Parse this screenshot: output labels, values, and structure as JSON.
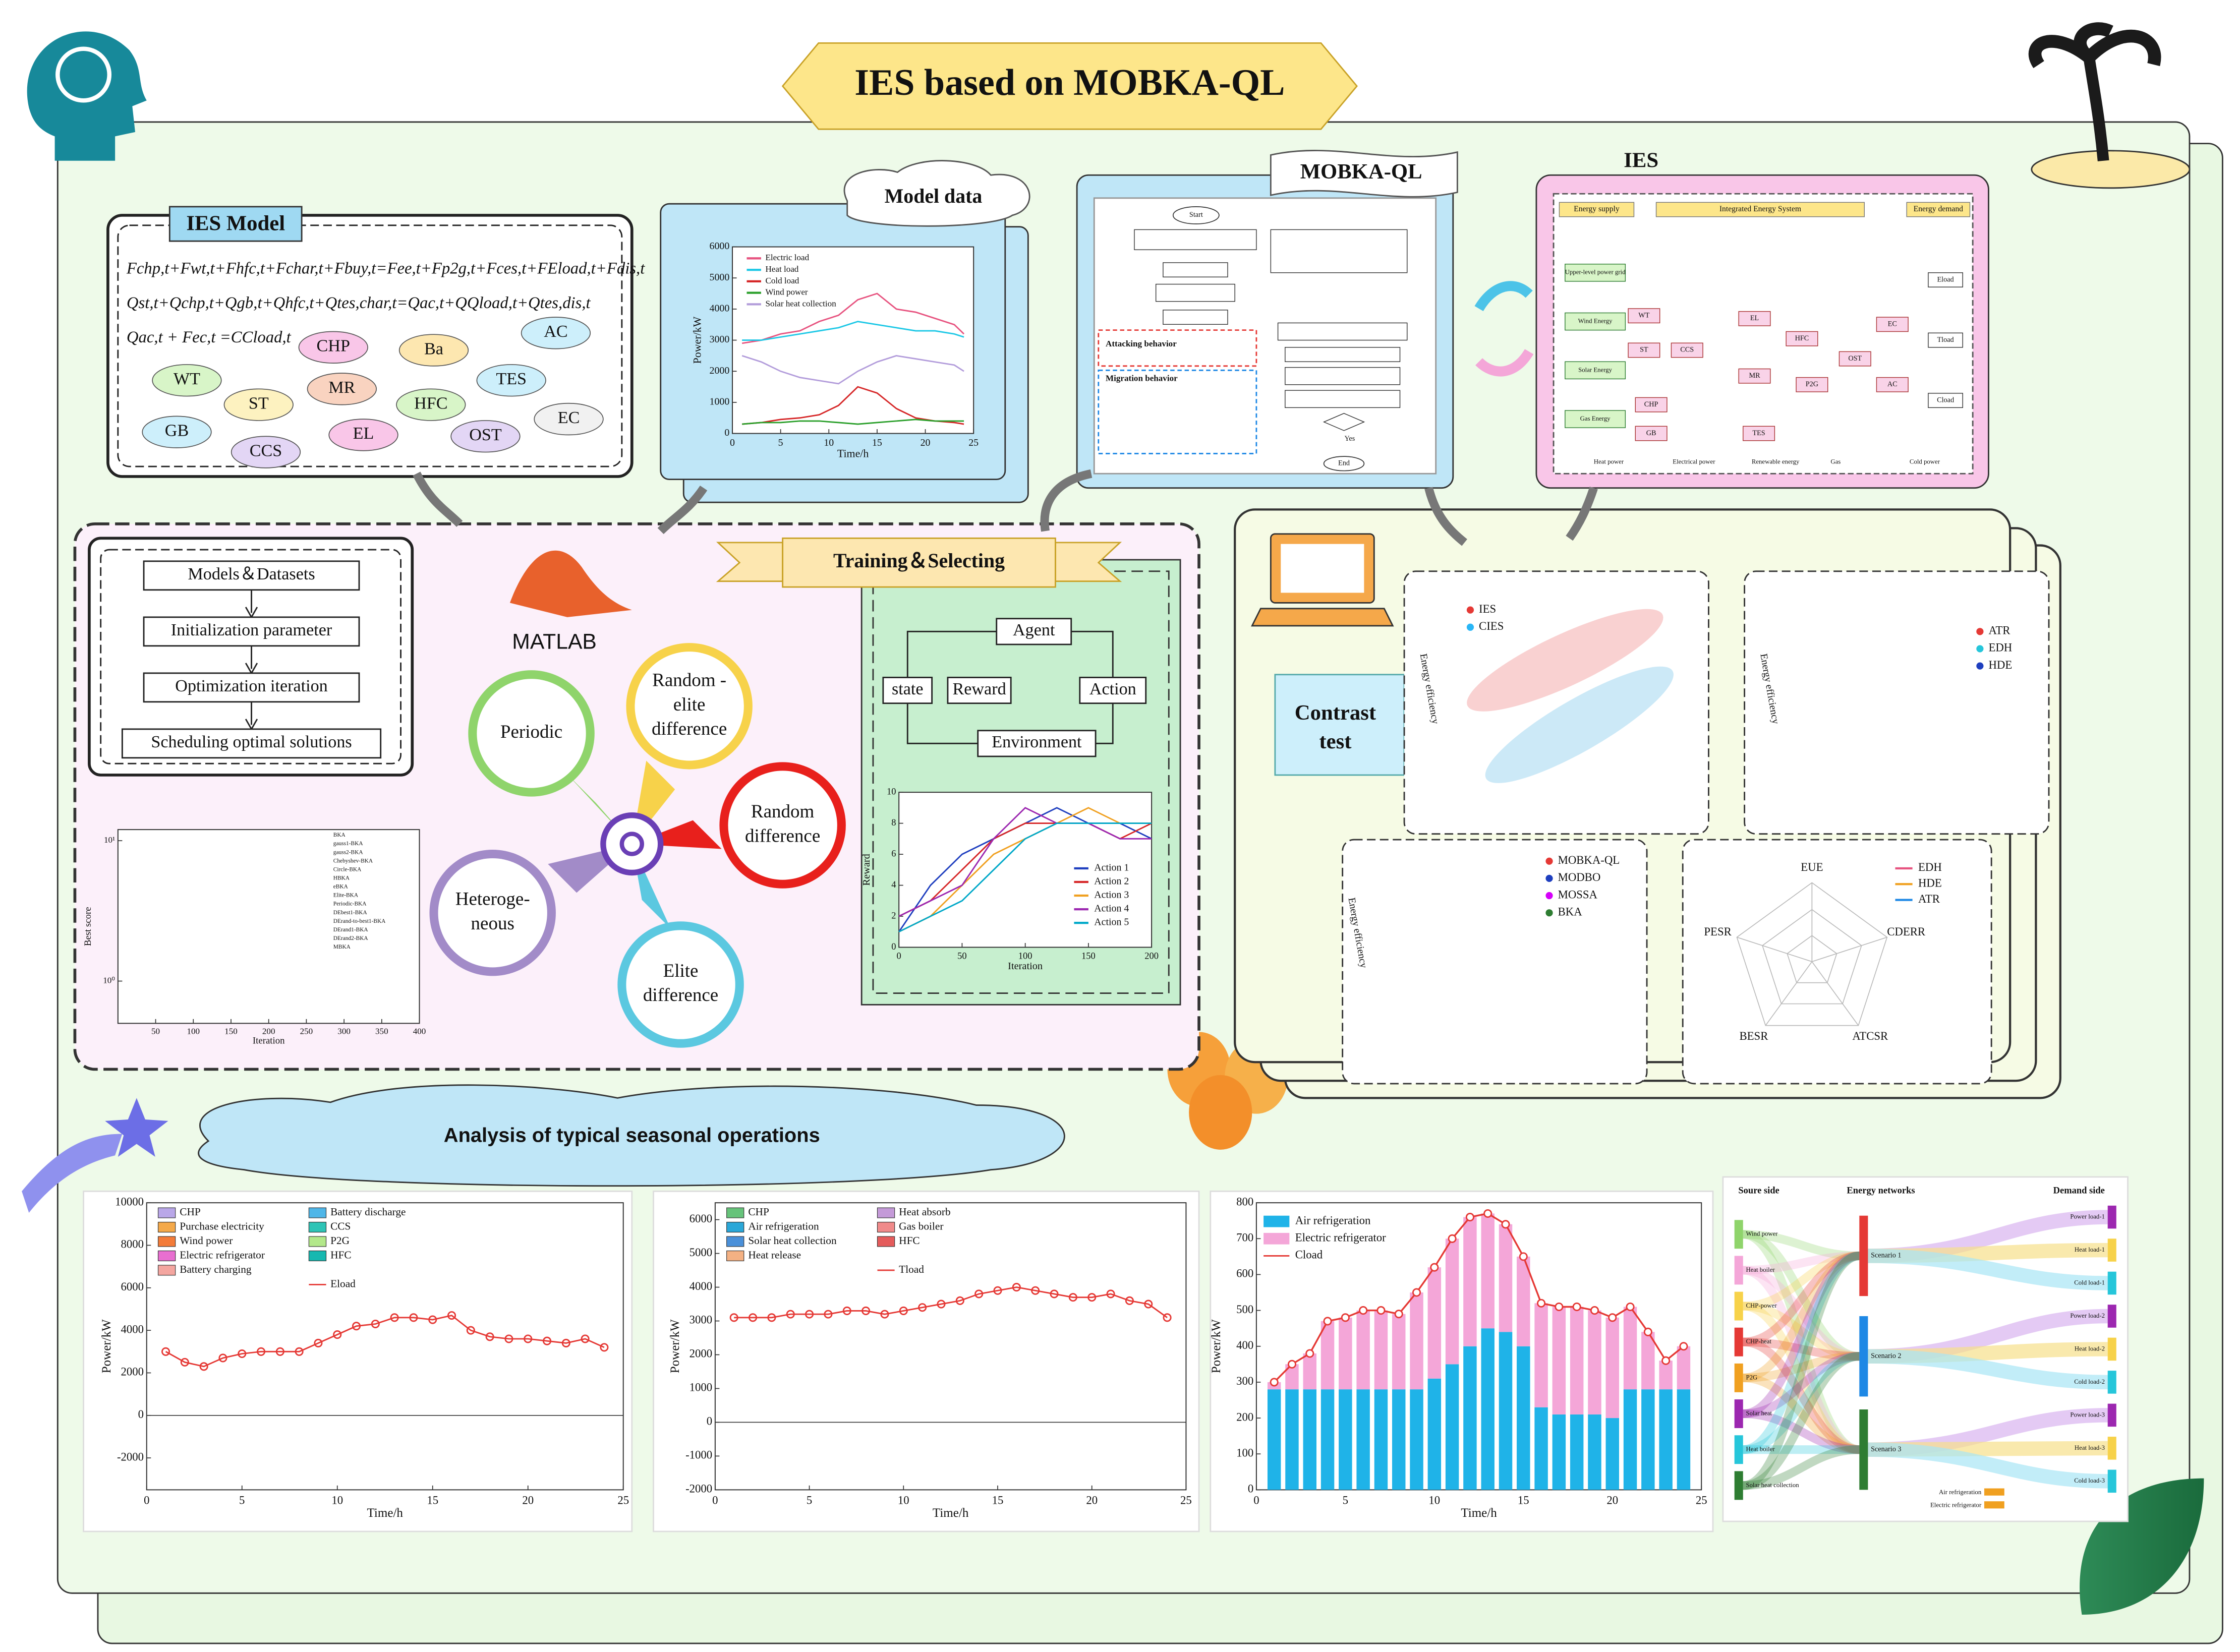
{
  "title": "IES based on MOBKA-QL",
  "ies_model": {
    "title": "IES Model",
    "equations": [
      "Fchp,t+Fwt,t+Fhfc,t+Fchar,t+Fbuy,t=Fee,t+Fp2g,t+Fces,t+FEload,t+Fdis,t",
      "Qst,t+Qchp,t+Qgb,t+Qhfc,t+Qtes,char,t=Qac,t+QQload,t+Qtes,dis,t",
      "Qac,t + Fec,t =CCload,t"
    ],
    "components": [
      "CHP",
      "Ba",
      "AC",
      "WT",
      "ST",
      "MR",
      "HFC",
      "TES",
      "EC",
      "GB",
      "CCS",
      "EL",
      "OST"
    ]
  },
  "model_data": {
    "title": "Model data",
    "x_label": "Time/h",
    "y_label": "Power/kW",
    "xlim": [
      0,
      25
    ],
    "xticks": [
      0,
      5,
      10,
      15,
      20,
      25
    ],
    "ylim": [
      0,
      6000
    ],
    "yticks": [
      0,
      1000,
      2000,
      3000,
      4000,
      5000,
      6000
    ],
    "x": [
      1,
      3,
      5,
      7,
      9,
      11,
      13,
      15,
      17,
      19,
      21,
      23,
      24
    ],
    "series": [
      {
        "name": "Electric load",
        "color": "#e75480",
        "values": [
          2900,
          3000,
          3200,
          3300,
          3600,
          3800,
          4300,
          4500,
          4000,
          3900,
          3700,
          3500,
          3200
        ]
      },
      {
        "name": "Heat load",
        "color": "#1ec8e6",
        "values": [
          3000,
          3000,
          3100,
          3200,
          3300,
          3400,
          3600,
          3500,
          3400,
          3300,
          3300,
          3200,
          3100
        ]
      },
      {
        "name": "Cold load",
        "color": "#d62728",
        "values": [
          300,
          350,
          450,
          500,
          600,
          900,
          1500,
          1300,
          800,
          500,
          400,
          350,
          300
        ]
      },
      {
        "name": "Wind power",
        "color": "#2ca02c",
        "values": [
          300,
          350,
          350,
          400,
          400,
          350,
          300,
          350,
          400,
          450,
          400,
          400,
          400
        ]
      },
      {
        "name": "Solar heat collection",
        "color": "#b39ddb",
        "values": [
          2500,
          2300,
          2000,
          1800,
          1700,
          1600,
          2000,
          2300,
          2500,
          2400,
          2300,
          2200,
          2000
        ]
      }
    ]
  },
  "mobka": {
    "title": "MOBKA-QL",
    "labels": [
      "Start",
      "Attacking behavior",
      "Migration behavior",
      "Yes",
      "End"
    ]
  },
  "ies": {
    "title": "IES",
    "headers": [
      "Energy supply",
      "Integrated Energy System",
      "Energy demand"
    ],
    "sources": [
      "Upper-level power grid",
      "Wind Energy",
      "Solar Energy",
      "Gas Energy"
    ],
    "units": [
      "WT",
      "ST",
      "CCS",
      "CHP",
      "GB",
      "EL",
      "HFC",
      "MR",
      "P2G",
      "TES",
      "EC",
      "AC",
      "OST"
    ],
    "loads": [
      "Eload",
      "Tload",
      "Cload"
    ],
    "legend": [
      "Heat power",
      "Electrical power",
      "Renewable energy",
      "Gas",
      "Cold power"
    ]
  },
  "flow": {
    "steps": [
      "Models＆Datasets",
      "Initialization parameter",
      "Optimization iteration",
      "Scheduling optimal solutions"
    ]
  },
  "convergence": {
    "x_label": "Iteration",
    "y_label": "Best score",
    "xlim": [
      0,
      400
    ],
    "xticks": [
      50,
      100,
      150,
      200,
      250,
      300,
      350,
      400
    ],
    "log": true,
    "ylim": [
      0.5,
      12
    ],
    "yticks": [
      {
        "value": 1,
        "label": "10⁰"
      },
      {
        "value": 10,
        "label": "10¹"
      }
    ],
    "legend": [
      "BKA",
      "gauss1-BKA",
      "gauss2-BKA",
      "Chebyshev-BKA",
      "Circle-BKA",
      "HBKA",
      "eBKA",
      "Elite-BKA",
      "Periodic-BKA",
      "DEbest1-BKA",
      "DErand-to-best1-BKA",
      "DErand1-BKA",
      "DErand2-BKA",
      "MBKA"
    ]
  },
  "matlab": "MATLAB",
  "strategies": [
    [
      "Periodic"
    ],
    [
      "Random -",
      "elite",
      "difference"
    ],
    [
      "Random",
      "difference"
    ],
    [
      "Elite",
      "difference"
    ],
    [
      "Heteroge-",
      "neous"
    ]
  ],
  "training": {
    "title": "Training＆Selecting",
    "nodes": [
      "Agent",
      "state",
      "Reward",
      "Action",
      "Environment"
    ],
    "x_label": "Iteration",
    "y_label": "Reward",
    "xlim": [
      0,
      200
    ],
    "xticks": [
      0,
      50,
      100,
      150,
      200
    ],
    "ylim": [
      0,
      10
    ],
    "yticks": [
      0,
      2,
      4,
      6,
      8,
      10
    ],
    "x": [
      0,
      25,
      50,
      75,
      100,
      125,
      150,
      175,
      200
    ],
    "series": [
      {
        "name": "Action 1",
        "color": "#1f3fbf",
        "values": [
          1,
          4,
          6,
          7,
          8,
          9,
          8,
          8,
          7
        ]
      },
      {
        "name": "Action 2",
        "color": "#d62728",
        "values": [
          2,
          3,
          5,
          7,
          8,
          8,
          8,
          7,
          8
        ]
      },
      {
        "name": "Action 3",
        "color": "#f0a020",
        "values": [
          1,
          2,
          4,
          6,
          7,
          8,
          9,
          8,
          8
        ]
      },
      {
        "name": "Action 4",
        "color": "#9c27b0",
        "values": [
          2,
          3,
          4,
          7,
          9,
          8,
          8,
          7,
          7
        ]
      },
      {
        "name": "Action 5",
        "color": "#00a8c8",
        "values": [
          1,
          2,
          3,
          5,
          7,
          8,
          8,
          8,
          8
        ]
      }
    ]
  },
  "contrast": {
    "title": [
      "Contrast",
      "test"
    ],
    "panel1": {
      "legend": [
        "IES",
        "CIES"
      ],
      "y_label": "Energy efficiency"
    },
    "panel2": {
      "legend": [
        "ATR",
        "EDH",
        "HDE"
      ],
      "y_label": "Energy efficiency"
    },
    "panel3": {
      "legend": [
        "MOBKA-QL",
        "MODBO",
        "MOSSA",
        "BKA"
      ],
      "y_label": "Energy efficiency"
    },
    "radar": {
      "axes": [
        "EUE",
        "CDERR",
        "ATCSR",
        "BESR",
        "PESR"
      ],
      "legend": [
        "EDH",
        "HDE",
        "ATR"
      ]
    }
  },
  "seasonal": {
    "title": "Analysis of typical seasonal operations",
    "chart1": {
      "x_label": "Time/h",
      "y_label": "Power/kW",
      "xlim": [
        0,
        25
      ],
      "xticks": [
        0,
        5,
        10,
        15,
        20,
        25
      ],
      "ylim": [
        -3500,
        10000
      ],
      "yticks": [
        -2000,
        0,
        2000,
        4000,
        6000,
        8000,
        10000
      ],
      "legend": [
        "CHP",
        "Purchase electricity",
        "Wind power",
        "Electric refrigerator",
        "Battery charging",
        "Battery discharge",
        "CCS",
        "P2G",
        "HFC"
      ],
      "legend_colors": [
        "#b9a7e8",
        "#f4a94a",
        "#f37b39",
        "#e86fd0",
        "#f4a6a0",
        "#4fb6e8",
        "#2ec4b6",
        "#b3e88a",
        "#17b8b0"
      ],
      "line": {
        "name": "Eload",
        "color": "#e53935",
        "values": [
          3000,
          2500,
          2300,
          2700,
          2900,
          3000,
          3000,
          3000,
          3400,
          3800,
          4200,
          4300,
          4600,
          4600,
          4500,
          4700,
          4000,
          3700,
          3600,
          3600,
          3500,
          3400,
          3600,
          3200
        ]
      }
    },
    "chart2": {
      "x_label": "Time/h",
      "y_label": "Power/kW",
      "xlim": [
        0,
        25
      ],
      "xticks": [
        0,
        5,
        10,
        15,
        20,
        25
      ],
      "ylim": [
        -2000,
        6500
      ],
      "yticks": [
        -2000,
        -1000,
        0,
        1000,
        2000,
        3000,
        4000,
        5000,
        6000
      ],
      "legend": [
        "CHP",
        "Air refrigeration",
        "Solar heat collection",
        "Heat release",
        "Heat absorb",
        "Gas boiler",
        "HFC"
      ],
      "legend_colors": [
        "#66c37a",
        "#2aa7d8",
        "#4a90d9",
        "#f4b183",
        "#c49ad8",
        "#f08a8a",
        "#e45b5b"
      ],
      "line": {
        "name": "Tload",
        "color": "#e53935",
        "values": [
          3100,
          3100,
          3100,
          3200,
          3200,
          3200,
          3300,
          3300,
          3200,
          3300,
          3400,
          3500,
          3600,
          3800,
          3900,
          4000,
          3900,
          3800,
          3700,
          3700,
          3800,
          3600,
          3500,
          3100
        ]
      }
    },
    "chart3": {
      "x_label": "Time/h",
      "y_label": "Power/kW",
      "xlim": [
        0,
        25
      ],
      "xticks": [
        0,
        5,
        10,
        15,
        20,
        25
      ],
      "ylim": [
        0,
        800
      ],
      "yticks": [
        0,
        100,
        200,
        300,
        400,
        500,
        600,
        700,
        800
      ],
      "series": [
        {
          "name": "Air refrigeration",
          "color": "#1fb3e8",
          "values": [
            280,
            280,
            280,
            280,
            280,
            280,
            280,
            280,
            280,
            310,
            350,
            400,
            450,
            440,
            400,
            230,
            210,
            210,
            210,
            200,
            280,
            280,
            280,
            280
          ]
        },
        {
          "name": "Electric refrigerator",
          "color": "#f4a6d8",
          "values": [
            20,
            70,
            100,
            190,
            200,
            220,
            220,
            210,
            270,
            310,
            350,
            360,
            320,
            300,
            250,
            290,
            300,
            300,
            290,
            280,
            230,
            160,
            80,
            120
          ]
        }
      ],
      "line": {
        "name": "Cload",
        "color": "#e53935",
        "values": [
          300,
          350,
          380,
          470,
          480,
          500,
          500,
          490,
          550,
          620,
          700,
          760,
          770,
          740,
          650,
          520,
          510,
          510,
          500,
          480,
          510,
          440,
          360,
          400
        ]
      }
    },
    "sankey": {
      "headers": [
        "Soure side",
        "Energy networks",
        "Demand side"
      ],
      "sources": [
        "Wind power",
        "Heat boiler",
        "CHP-power",
        "CHP-heat",
        "P2G",
        "Solar heat",
        "Heat boiler",
        "Solar heat collection"
      ],
      "networks": [
        "Scenario 1",
        "Scenario 2",
        "Scenario 3"
      ],
      "demands": [
        "Power load-1",
        "Heat load-1",
        "Cold load-1",
        "Power load-2",
        "Heat load-2",
        "Cold load-2",
        "Power load-3",
        "Heat load-3",
        "Cold load-3"
      ],
      "extra": [
        "Air refrigeration",
        "Electric refrigerator"
      ]
    }
  }
}
